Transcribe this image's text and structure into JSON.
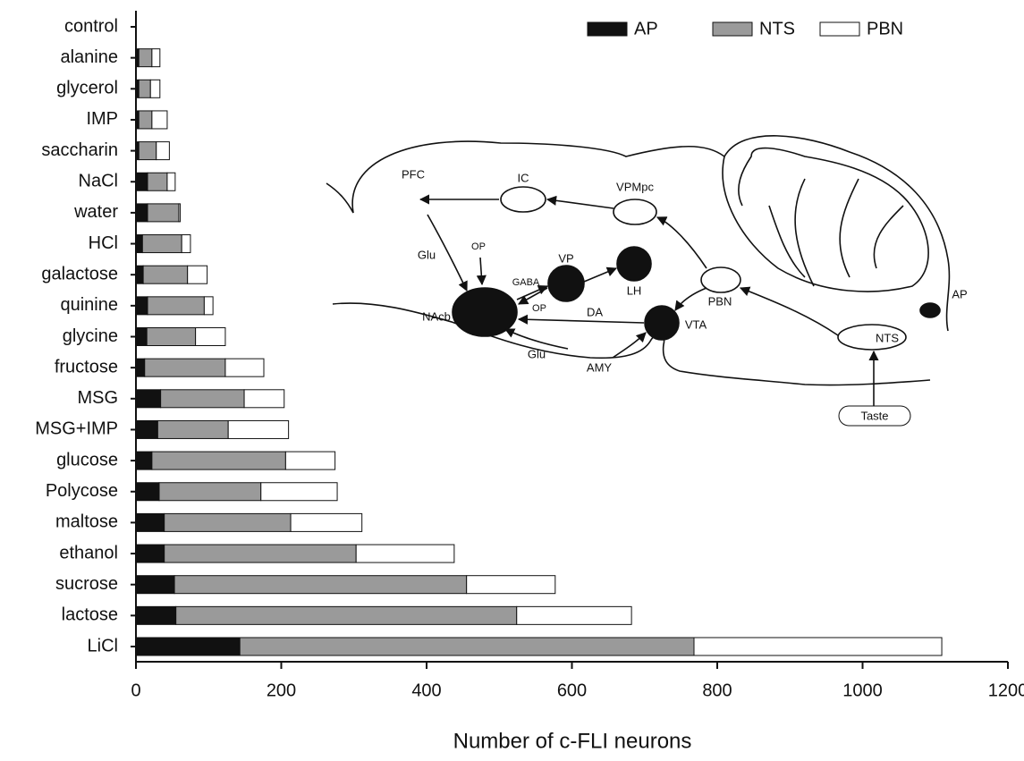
{
  "chart_data": {
    "type": "bar",
    "orientation": "horizontal",
    "stacked": true,
    "x_label": "Number of c-FLI neurons",
    "categories": [
      "control",
      "alanine",
      "glycerol",
      "IMP",
      "saccharin",
      "NaCl",
      "water",
      "HCl",
      "galactose",
      "quinine",
      "glycine",
      "fructose",
      "MSG",
      "MSG+IMP",
      "glucose",
      "Polycose",
      "maltose",
      "ethanol",
      "sucrose",
      "lactose",
      "LiCl"
    ],
    "series": [
      {
        "name": "AP",
        "color": "#111111",
        "values": [
          0,
          4,
          4,
          4,
          4,
          16,
          16,
          9,
          10,
          16,
          15,
          12,
          34,
          30,
          22,
          32,
          39,
          39,
          53,
          55,
          143
        ]
      },
      {
        "name": "NTS",
        "color": "#9a9a9a",
        "values": [
          0,
          18,
          16,
          18,
          24,
          27,
          43,
          54,
          61,
          78,
          67,
          111,
          115,
          97,
          184,
          140,
          174,
          264,
          402,
          469,
          625
        ]
      },
      {
        "name": "PBN",
        "color": "#ffffff",
        "values": [
          0,
          11,
          13,
          21,
          18,
          11,
          2,
          12,
          27,
          12,
          41,
          53,
          55,
          83,
          68,
          105,
          98,
          135,
          122,
          158,
          341
        ]
      }
    ],
    "xlim": [
      0,
      1200
    ],
    "xticks": [
      0,
      200,
      400,
      600,
      800,
      1000,
      1200
    ],
    "legend": "top-right"
  },
  "inset_diagram": {
    "labels": [
      "PFC",
      "IC",
      "VPMpc",
      "Glu",
      "OP",
      "GABA",
      "VP",
      "LH",
      "NAcb",
      "OP",
      "DA",
      "VTA",
      "PBN",
      "AP",
      "NTS",
      "Glu",
      "AMY",
      "Taste"
    ]
  }
}
